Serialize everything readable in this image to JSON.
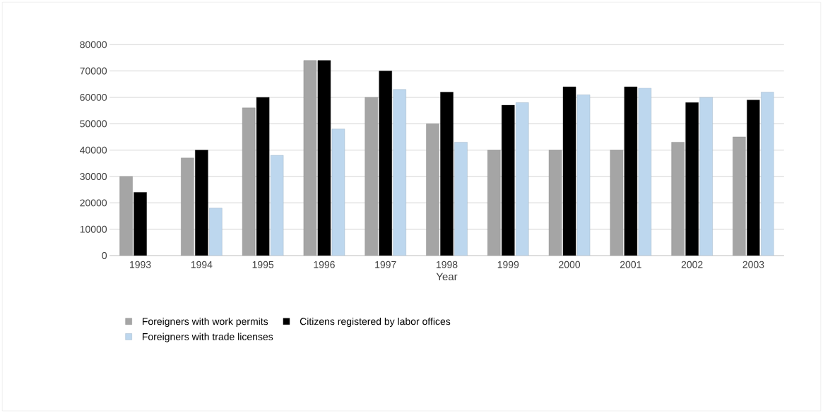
{
  "chart_data": {
    "type": "bar",
    "xlabel": "Year",
    "categories": [
      "1993",
      "1994",
      "1995",
      "1996",
      "1997",
      "1998",
      "1999",
      "2000",
      "2001",
      "2002",
      "2003"
    ],
    "series": [
      {
        "name": "Foreigners with work permits",
        "color": "#a5a5a5",
        "values": [
          30000,
          37000,
          56000,
          74000,
          60000,
          50000,
          40000,
          40000,
          40000,
          43000,
          45000
        ]
      },
      {
        "name": "Citizens registered by labor offices",
        "color": "#000000",
        "values": [
          24000,
          40000,
          60000,
          74000,
          70000,
          62000,
          57000,
          64000,
          64000,
          58000,
          59000
        ]
      },
      {
        "name": "Foreigners with trade licenses",
        "color": "#bdd7ee",
        "values": [
          null,
          18000,
          38000,
          48000,
          63000,
          43000,
          58000,
          61000,
          63500,
          60000,
          62000
        ]
      }
    ],
    "ylim": [
      0,
      80000
    ],
    "yticks": [
      0,
      10000,
      20000,
      30000,
      40000,
      50000,
      60000,
      70000,
      80000
    ],
    "grid": "y",
    "legend": "bottom"
  }
}
